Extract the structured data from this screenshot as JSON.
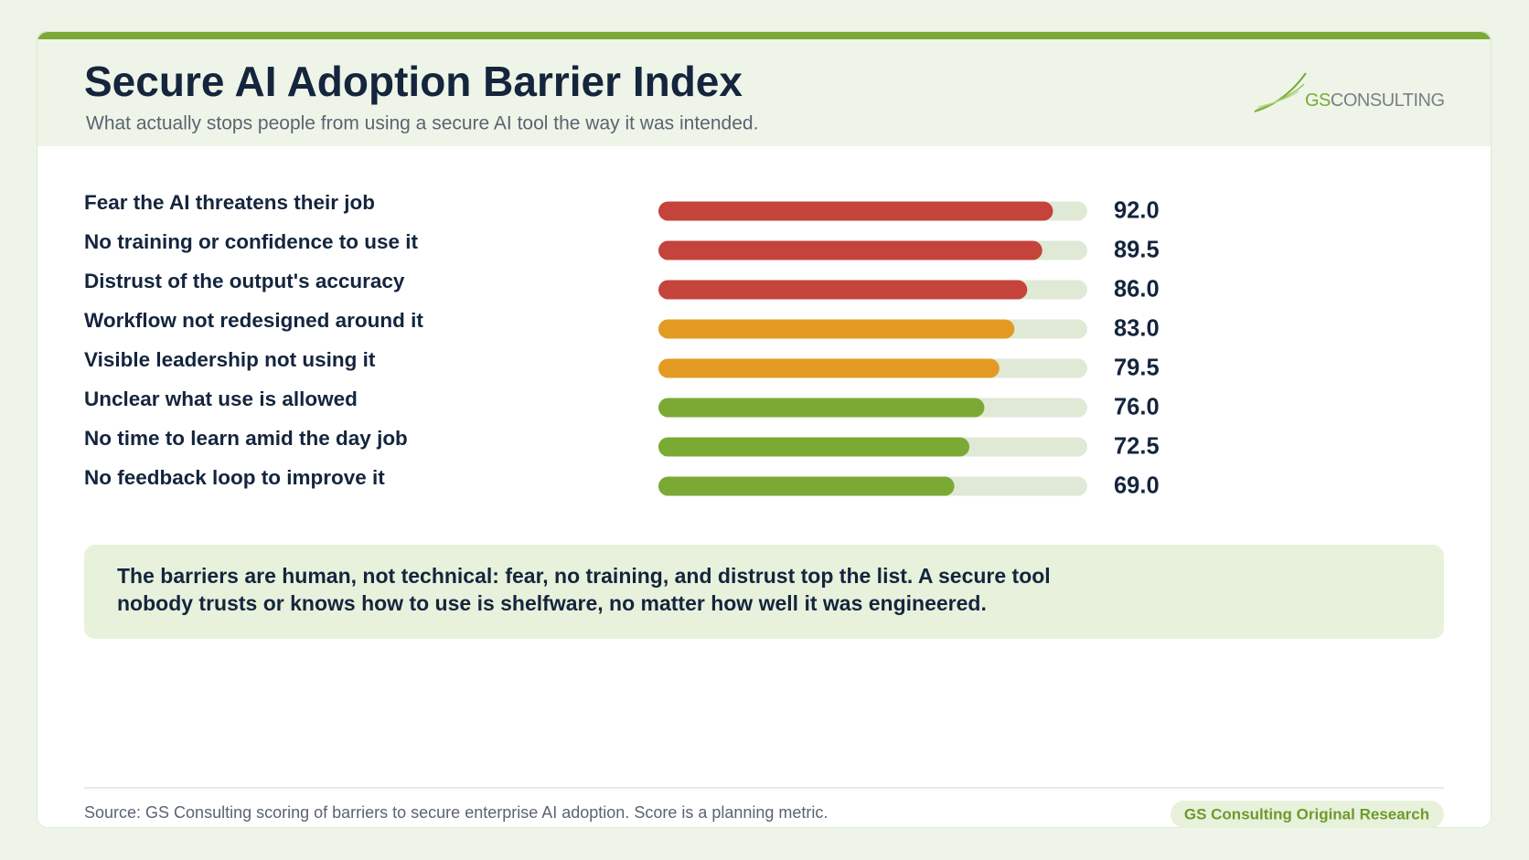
{
  "chart_data": {
    "type": "bar",
    "title": "Secure AI Adoption Barrier Index",
    "subtitle": "What actually stops people from using a secure AI tool the way it was intended.",
    "logo": {
      "accent": "GS",
      "text": "CONSULTING"
    },
    "categories": [
      "Fear the AI threatens their job",
      "No training or confidence to use it",
      "Distrust of the output's accuracy",
      "Workflow not redesigned around it",
      "Visible leadership not using it",
      "Unclear what use is allowed",
      "No time to learn amid the day job",
      "No feedback loop to improve it"
    ],
    "values": [
      92.0,
      89.5,
      86.0,
      83.0,
      79.5,
      76.0,
      72.5,
      69.0
    ],
    "value_labels": [
      "92.0",
      "89.5",
      "86.0",
      "83.0",
      "79.5",
      "76.0",
      "72.5",
      "69.0"
    ],
    "colors": [
      "#c4433b",
      "#c4433b",
      "#c4433b",
      "#e39a22",
      "#e39a22",
      "#7aaa34",
      "#7aaa34",
      "#7aaa34"
    ],
    "track_color": "#dfe9d6",
    "xlim": [
      0,
      100
    ],
    "note": [
      "The barriers are human, not technical: fear, no training, and distrust top the list. A secure tool",
      "nobody trusts or knows how to use is shelfware, no matter how well it was engineered."
    ],
    "source": "Source: GS Consulting scoring of barriers to secure enterprise AI adoption. Score is a planning metric.",
    "badge": "GS Consulting Original Research"
  }
}
